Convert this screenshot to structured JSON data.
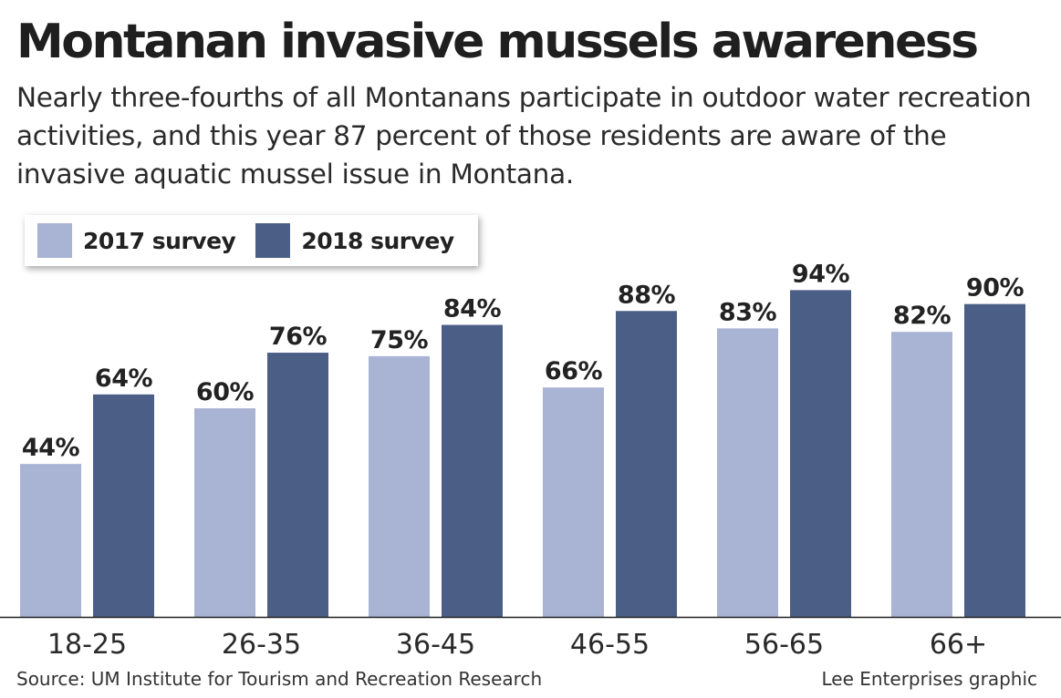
{
  "header": {
    "title": "Montanan invasive mussels awareness",
    "subtitle": "Nearly three-fourths of all Montanans participate in outdoor water recreation activities, and this year 87 percent of those residents are aware of the invasive aquatic mussel issue in Montana."
  },
  "footer": {
    "source": "Source: UM Institute for Tourism and Recreation Research",
    "credit": "Lee Enterprises graphic"
  },
  "colors": {
    "series_2017": "#a9b3d3",
    "series_2018": "#4b5e86",
    "text": "#222222"
  },
  "chart_data": {
    "type": "bar",
    "title": "Montanan invasive mussels awareness",
    "categories": [
      "18-25",
      "26-35",
      "36-45",
      "46-55",
      "56-65",
      "66+"
    ],
    "series": [
      {
        "name": "2017 survey",
        "values": [
          44,
          60,
          75,
          66,
          83,
          82
        ],
        "labels": [
          "44%",
          "60%",
          "75%",
          "66%",
          "83%",
          "82%"
        ],
        "color": "#a9b3d3"
      },
      {
        "name": "2018 survey",
        "values": [
          64,
          76,
          84,
          88,
          94,
          90
        ],
        "labels": [
          "64%",
          "76%",
          "84%",
          "88%",
          "94%",
          "90%"
        ],
        "color": "#4b5e86"
      }
    ],
    "ylim": [
      0,
      100
    ],
    "grid": false,
    "legend": "top-left",
    "xlabel": "",
    "ylabel": ""
  }
}
